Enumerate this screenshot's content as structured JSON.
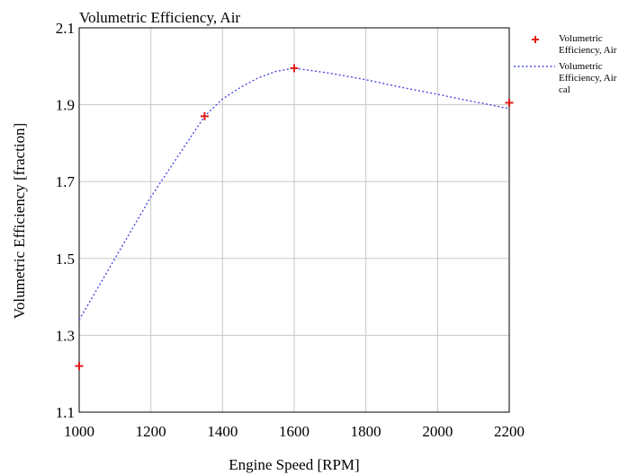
{
  "chart_data": {
    "type": "line",
    "title": "Volumetric Efficiency, Air",
    "xlabel": "Engine Speed [RPM]",
    "ylabel": "Volumetric Efficiency [fraction]",
    "xlim": [
      1000,
      2200
    ],
    "ylim": [
      1.1,
      2.1
    ],
    "x_ticks": [
      1000,
      1200,
      1400,
      1600,
      1800,
      2000,
      2200
    ],
    "y_ticks": [
      1.1,
      1.3,
      1.5,
      1.7,
      1.9,
      2.1
    ],
    "grid": true,
    "legend_position": "top-right, outside plot",
    "series": [
      {
        "name": "Volumetric Efficiency, Air",
        "style": "markers",
        "marker": "plus",
        "color": "#e01b1b",
        "x": [
          1000,
          1350,
          1600,
          2200
        ],
        "y": [
          1.22,
          1.87,
          1.995,
          1.905
        ]
      },
      {
        "name": "Volumetric Efficiency, Air cal",
        "style": "dotted-line",
        "color": "#4a4ae0",
        "x": [
          1000,
          1050,
          1100,
          1150,
          1200,
          1250,
          1300,
          1350,
          1400,
          1450,
          1500,
          1550,
          1600,
          1700,
          1800,
          1900,
          2000,
          2100,
          2200
        ],
        "y": [
          1.34,
          1.42,
          1.5,
          1.58,
          1.66,
          1.73,
          1.8,
          1.87,
          1.915,
          1.945,
          1.97,
          1.987,
          1.995,
          1.982,
          1.965,
          1.945,
          1.927,
          1.908,
          1.89
        ]
      }
    ],
    "legend": {
      "entries": [
        {
          "lines": [
            "Volumetric",
            "Efficiency, Air"
          ]
        },
        {
          "lines": [
            "Volumetric",
            "Efficiency, Air",
            "cal"
          ]
        }
      ]
    }
  }
}
